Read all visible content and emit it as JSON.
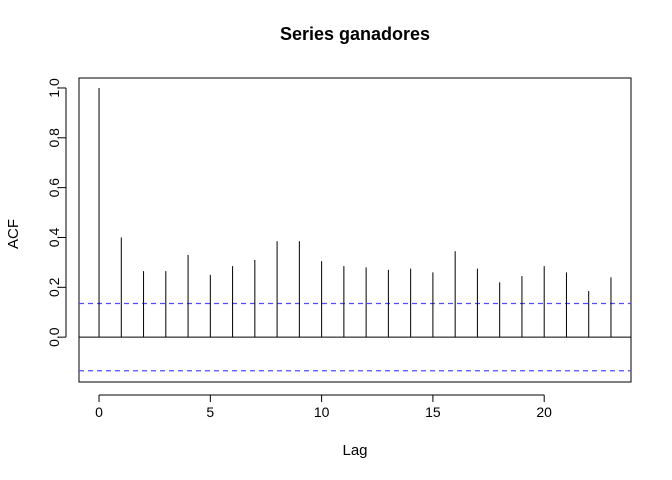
{
  "chart_data": {
    "type": "bar",
    "title": "Series  ganadores",
    "xlabel": "Lag",
    "ylabel": "ACF",
    "x": [
      0,
      1,
      2,
      3,
      4,
      5,
      6,
      7,
      8,
      9,
      10,
      11,
      12,
      13,
      14,
      15,
      16,
      17,
      18,
      19,
      20,
      21,
      22,
      23
    ],
    "values": [
      1.0,
      0.4,
      0.265,
      0.265,
      0.33,
      0.25,
      0.285,
      0.31,
      0.385,
      0.385,
      0.305,
      0.285,
      0.28,
      0.27,
      0.275,
      0.26,
      0.345,
      0.275,
      0.22,
      0.245,
      0.285,
      0.26,
      0.185,
      0.24
    ],
    "confidence_band": [
      0.135,
      -0.135
    ],
    "xlim": [
      -0.9,
      23.9
    ],
    "ylim": [
      -0.18,
      1.04
    ],
    "x_ticks": [
      "0",
      "5",
      "10",
      "15",
      "20"
    ],
    "y_ticks": [
      "0.0",
      "0.2",
      "0.4",
      "0.6",
      "0.8",
      "1.0"
    ],
    "grid": false,
    "colors": {
      "bars": "#000000",
      "confidence_band": "#4d4dff",
      "zero_line": "#000000"
    }
  }
}
